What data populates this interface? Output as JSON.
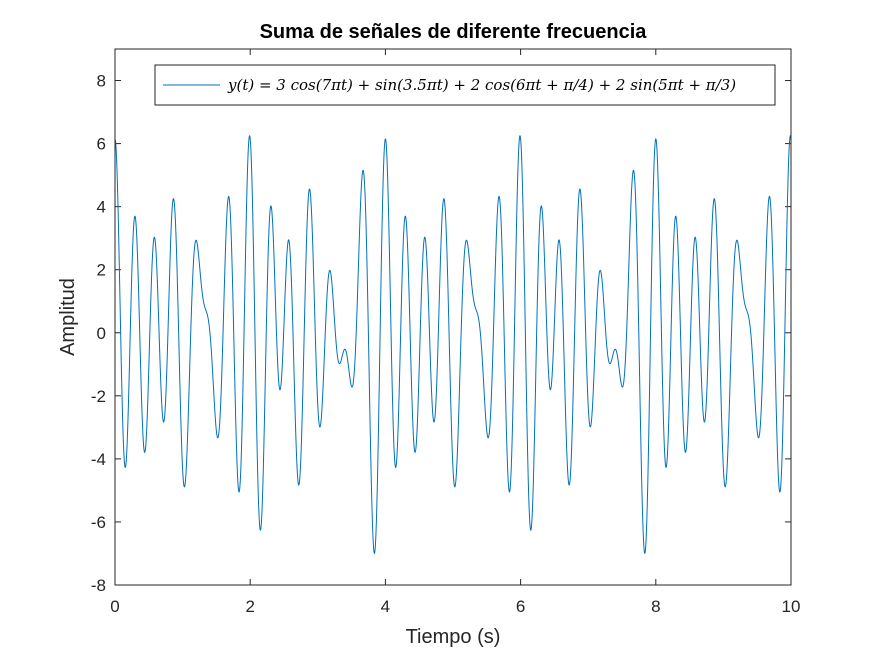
{
  "chart_data": {
    "type": "line",
    "title": "Suma de señales de diferente frecuencia",
    "xlabel": "Tiempo (s)",
    "ylabel": "Amplitud",
    "xlim": [
      0,
      10
    ],
    "ylim": [
      -8,
      9
    ],
    "xticks": [
      0,
      2,
      4,
      6,
      8,
      10
    ],
    "yticks": [
      -8,
      -6,
      -4,
      -2,
      0,
      2,
      4,
      6,
      8
    ],
    "grid": false,
    "legend_position": "top-right",
    "series": [
      {
        "name": "y(t) = 3 cos(7πt) + sin(3.5πt) + 2 cos(6πt + π/4) + 2 sin(5πt + π/3)",
        "color": "#0072BD",
        "function": "3*cos(7*pi*t) + sin(3.5*pi*t) + 2*cos(6*pi*t + pi/4) + 2*sin(5*pi*t + pi/3)",
        "t_start": 0,
        "t_end": 10,
        "points": 4000
      }
    ]
  }
}
